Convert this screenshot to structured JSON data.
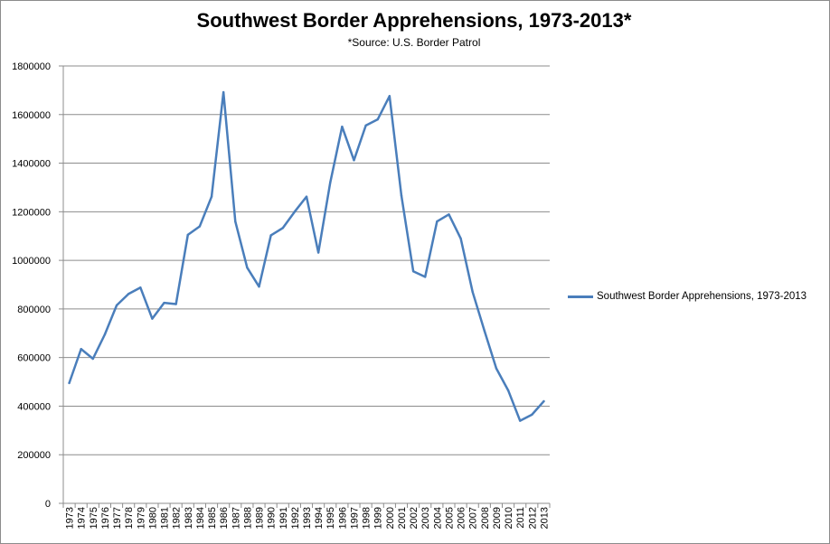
{
  "chart_data": {
    "type": "line",
    "title": "Southwest Border Apprehensions, 1973-2013*",
    "subtitle": "*Source: U.S. Border Patrol",
    "xlabel": "",
    "ylabel": "",
    "ylim": [
      0,
      1800000
    ],
    "yticks": [
      "0",
      "200000",
      "400000",
      "600000",
      "800000",
      "1000000",
      "1200000",
      "1400000",
      "1600000",
      "1800000"
    ],
    "grid": true,
    "legend_position": "right",
    "categories": [
      "1973",
      "1974",
      "1975",
      "1976",
      "1977",
      "1978",
      "1979",
      "1980",
      "1981",
      "1982",
      "1983",
      "1984",
      "1985",
      "1986",
      "1987",
      "1988",
      "1989",
      "1990",
      "1991",
      "1992",
      "1993",
      "1994",
      "1995",
      "1996",
      "1997",
      "1998",
      "1999",
      "2000",
      "2001",
      "2002",
      "2003",
      "2004",
      "2005",
      "2006",
      "2007",
      "2008",
      "2009",
      "2010",
      "2011",
      "2012",
      "2013"
    ],
    "series": [
      {
        "name": "Southwest Border Apprehensions, 1973-2013",
        "color": "#4a7ebb",
        "values": [
          495000,
          635000,
          595000,
          695000,
          815000,
          862000,
          888000,
          760000,
          825000,
          820000,
          1105000,
          1140000,
          1262000,
          1692000,
          1160000,
          970000,
          892000,
          1103000,
          1133000,
          1200000,
          1262000,
          1032000,
          1320000,
          1550000,
          1412000,
          1555000,
          1580000,
          1676000,
          1266000,
          955000,
          932000,
          1160000,
          1189000,
          1090000,
          870000,
          710000,
          555000,
          465000,
          340000,
          365000,
          420000
        ]
      }
    ]
  }
}
